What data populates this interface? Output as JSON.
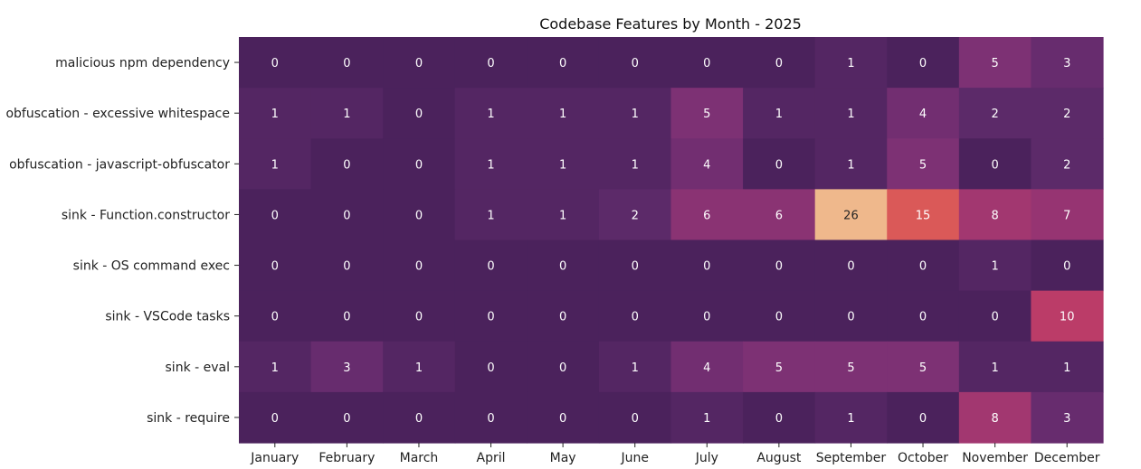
{
  "chart_data": {
    "type": "heatmap",
    "title": "Codebase Features by Month - 2025",
    "xlabel": "",
    "ylabel": "",
    "columns": [
      "January",
      "February",
      "March",
      "April",
      "May",
      "June",
      "July",
      "August",
      "September",
      "October",
      "November",
      "December"
    ],
    "rows": [
      "malicious npm dependency",
      "obfuscation - excessive whitespace",
      "obfuscation - javascript-obfuscator",
      "sink - Function.constructor",
      "sink - OS command exec",
      "sink - VSCode tasks",
      "sink - eval",
      "sink - require"
    ],
    "values": [
      [
        0,
        0,
        0,
        0,
        0,
        0,
        0,
        0,
        1,
        0,
        5,
        3
      ],
      [
        1,
        1,
        0,
        1,
        1,
        1,
        5,
        1,
        1,
        4,
        2,
        2
      ],
      [
        1,
        0,
        0,
        1,
        1,
        1,
        4,
        0,
        1,
        5,
        0,
        2
      ],
      [
        0,
        0,
        0,
        1,
        1,
        2,
        6,
        6,
        26,
        15,
        8,
        7
      ],
      [
        0,
        0,
        0,
        0,
        0,
        0,
        0,
        0,
        0,
        0,
        1,
        0
      ],
      [
        0,
        0,
        0,
        0,
        0,
        0,
        0,
        0,
        0,
        0,
        0,
        10
      ],
      [
        1,
        3,
        1,
        0,
        0,
        1,
        4,
        5,
        5,
        5,
        1,
        1
      ],
      [
        0,
        0,
        0,
        0,
        0,
        0,
        1,
        0,
        1,
        0,
        8,
        3
      ]
    ],
    "value_range": [
      0,
      26
    ],
    "colormap": "flare (dark purple to light orange)",
    "annotated": true,
    "colorbar": false,
    "grid": false
  }
}
